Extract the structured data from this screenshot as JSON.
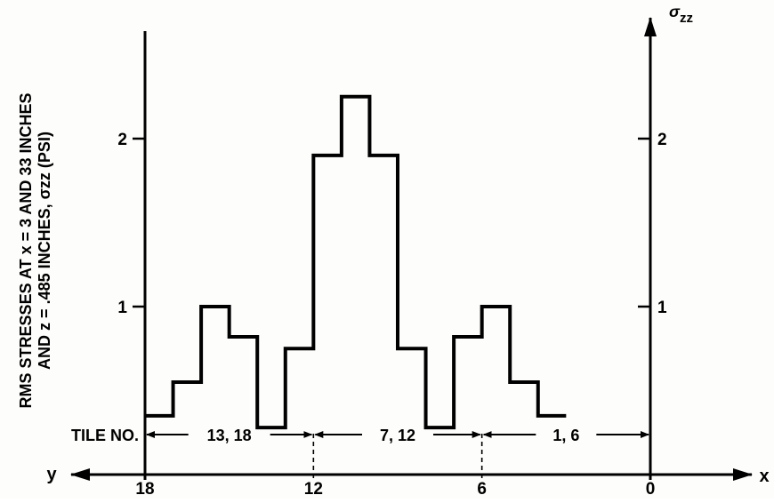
{
  "chart_data": {
    "type": "line",
    "style": "step",
    "x_axis_direction": "reversed",
    "x_axis_names": {
      "left": "y",
      "right": "x"
    },
    "xlim": [
      18,
      0
    ],
    "ylim": [
      0,
      2.5
    ],
    "x_ticks": [
      "18",
      "12",
      "6",
      "0"
    ],
    "y_ticks": [
      "1",
      "2"
    ],
    "right_axis_label": "σzz",
    "ylabel_line1": "RMS STRESSES AT x = 3 AND 33 INCHES",
    "ylabel_line2": "AND z = .485 INCHES, σzz (PSI)",
    "grid": false,
    "series": [
      {
        "steps": [
          {
            "x0": 18,
            "x1": 17,
            "y": 0.35
          },
          {
            "x0": 17,
            "x1": 16,
            "y": 0.55
          },
          {
            "x0": 16,
            "x1": 15,
            "y": 1.0
          },
          {
            "x0": 15,
            "x1": 14,
            "y": 0.82
          },
          {
            "x0": 14,
            "x1": 13,
            "y": 0.28
          },
          {
            "x0": 13,
            "x1": 12,
            "y": 0.75
          },
          {
            "x0": 12,
            "x1": 11,
            "y": 1.9
          },
          {
            "x0": 11,
            "x1": 10,
            "y": 2.25
          },
          {
            "x0": 10,
            "x1": 9,
            "y": 1.9
          },
          {
            "x0": 9,
            "x1": 8,
            "y": 0.75
          },
          {
            "x0": 8,
            "x1": 7,
            "y": 0.28
          },
          {
            "x0": 7,
            "x1": 6,
            "y": 0.82
          },
          {
            "x0": 6,
            "x1": 5,
            "y": 1.0
          },
          {
            "x0": 5,
            "x1": 4,
            "y": 0.55
          },
          {
            "x0": 4,
            "x1": 3,
            "y": 0.35
          }
        ]
      }
    ],
    "boundary_markers": [
      12,
      6
    ],
    "tile_label": "TILE NO.",
    "tile_spans": [
      {
        "from": 18,
        "to": 12,
        "label": "13, 18"
      },
      {
        "from": 12,
        "to": 6,
        "label": "7, 12"
      },
      {
        "from": 6,
        "to": 0,
        "label": "1, 6"
      }
    ]
  }
}
